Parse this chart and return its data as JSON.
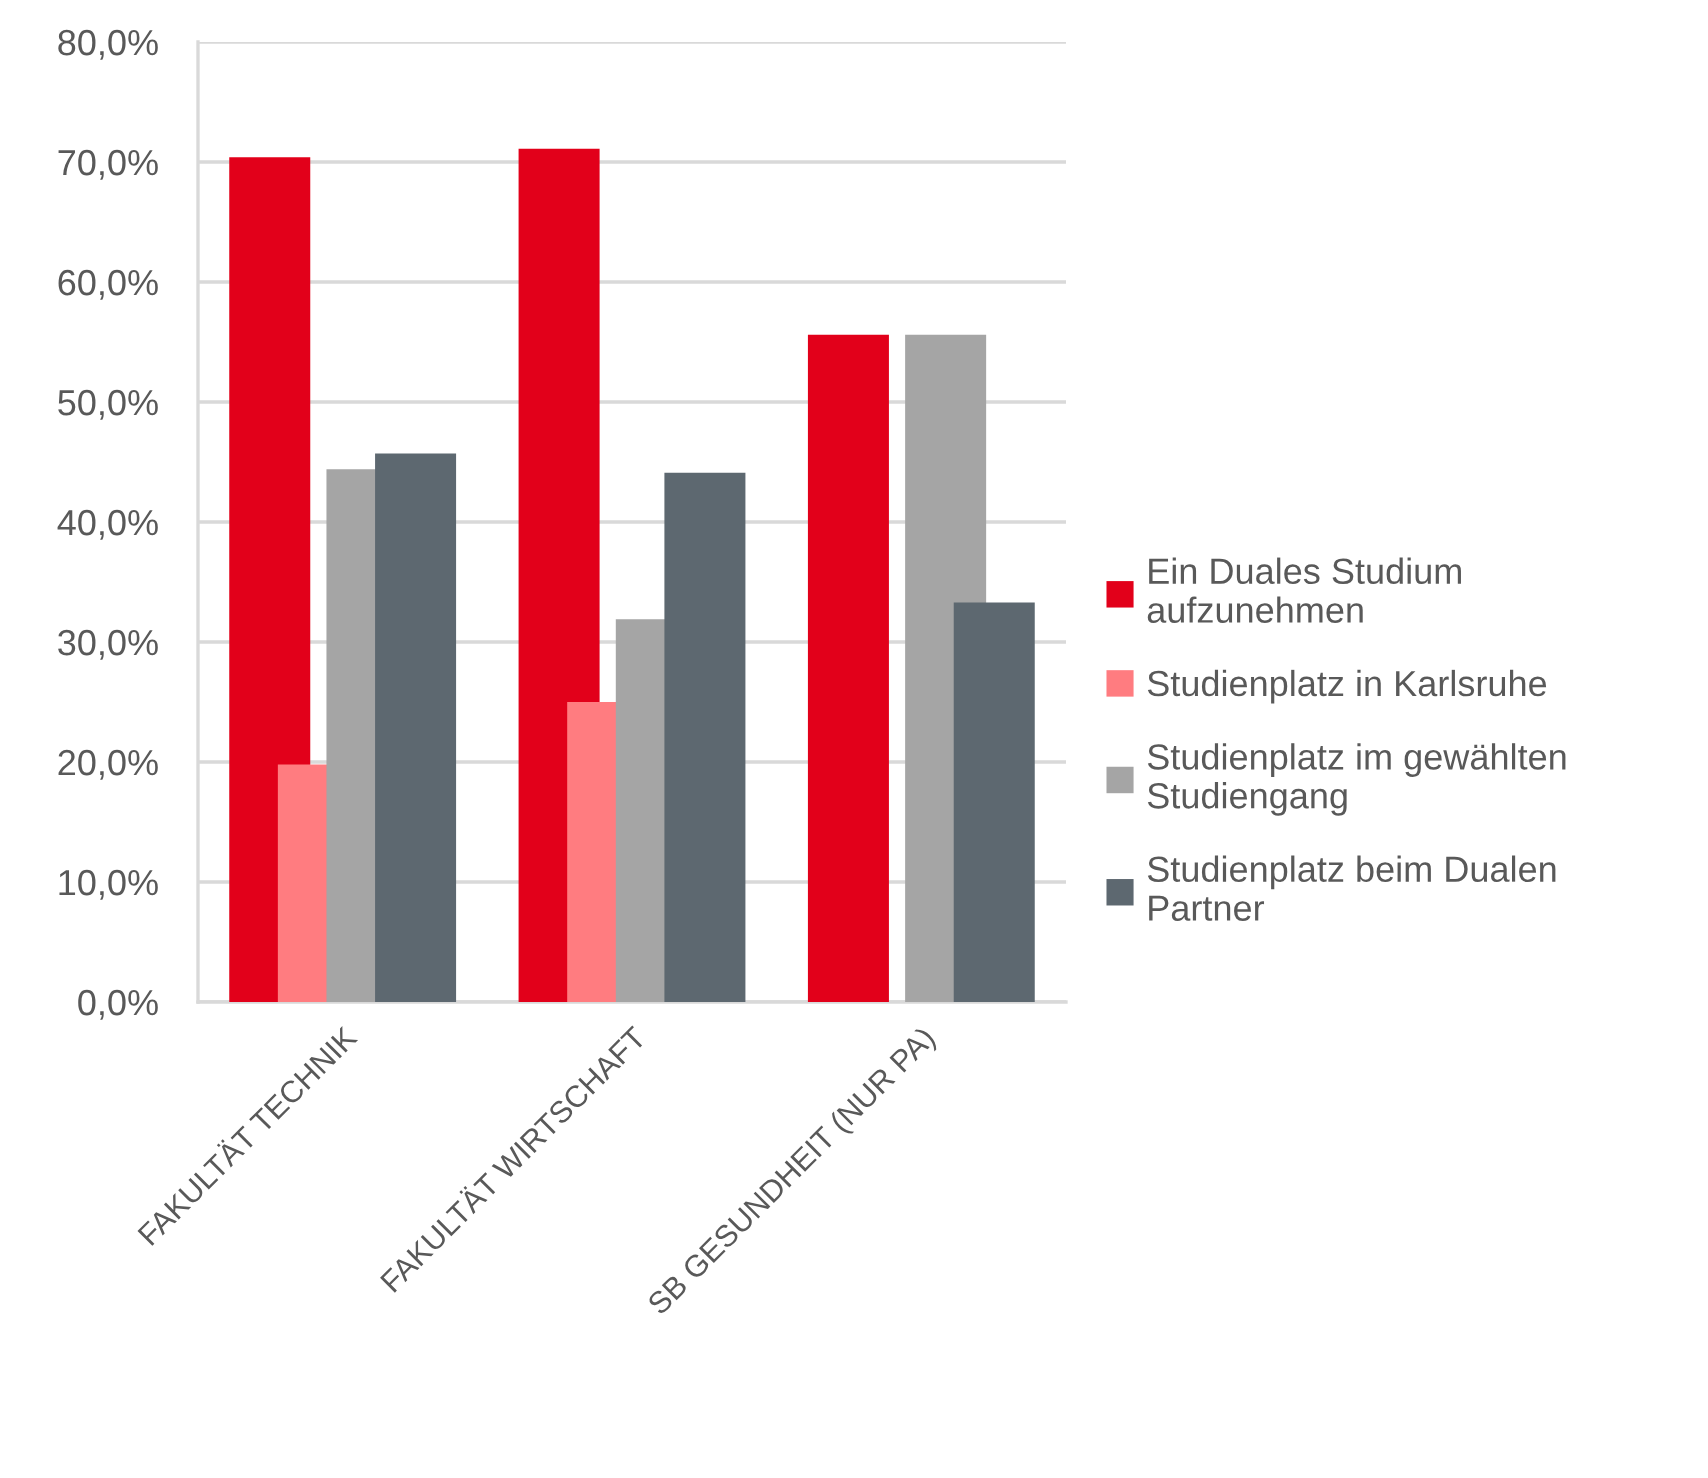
{
  "chart_data": {
    "type": "bar",
    "categories": [
      "FAKULTÄT TECHNIK",
      "FAKULTÄT WIRTSCHAFT",
      "SB GESUNDHEIT (NUR PA)"
    ],
    "series": [
      {
        "name": "Ein Duales Studium aufzunehmen",
        "color": "#e2001a",
        "values": [
          70.4,
          71.1,
          55.6
        ]
      },
      {
        "name": "Studienplatz in Karlsruhe",
        "color": "#ff7c80",
        "values": [
          19.8,
          25.0,
          0
        ]
      },
      {
        "name": "Studienplatz im gewählten Studiengang",
        "color": "#a5a5a5",
        "values": [
          44.4,
          31.9,
          55.6
        ]
      },
      {
        "name": "Studienplatz beim Dualen Partner",
        "color": "#5d6870",
        "values": [
          45.7,
          44.1,
          33.3
        ]
      }
    ],
    "ylim": [
      0,
      80
    ],
    "yticks": [
      {
        "value": 0,
        "label": "0,0%"
      },
      {
        "value": 10,
        "label": "10,0%"
      },
      {
        "value": 20,
        "label": "20,0%"
      },
      {
        "value": 30,
        "label": "30,0%"
      },
      {
        "value": 40,
        "label": "40,0%"
      },
      {
        "value": 50,
        "label": "50,0%"
      },
      {
        "value": 60,
        "label": "60,0%"
      },
      {
        "value": 70,
        "label": "70,0%"
      },
      {
        "value": 80,
        "label": "80,0%"
      }
    ],
    "grid": "y",
    "legend": "right"
  }
}
